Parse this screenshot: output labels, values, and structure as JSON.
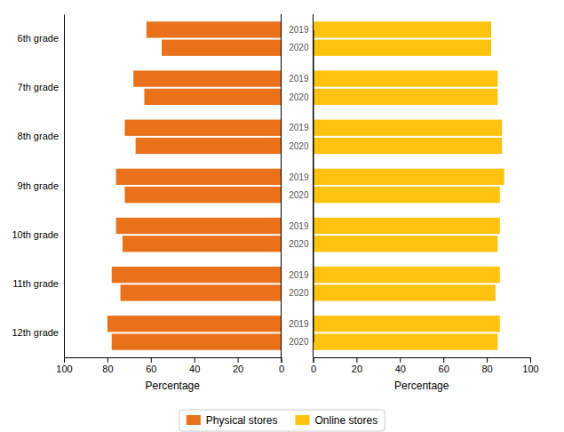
{
  "chart_data": [
    {
      "type": "bar",
      "orientation": "horizontal",
      "name": "Physical stores",
      "color": "#E8711A",
      "categories": [
        "6th grade",
        "7th grade",
        "8th grade",
        "9th grade",
        "10th grade",
        "11th grade",
        "12th grade"
      ],
      "series": [
        {
          "name": "2019",
          "values": [
            62,
            68,
            72,
            76,
            76,
            78,
            80
          ]
        },
        {
          "name": "2020",
          "values": [
            55,
            63,
            67,
            72,
            73,
            74,
            78
          ]
        }
      ],
      "xlabel": "Percentage",
      "xlim": [
        100,
        0
      ],
      "xticks": [
        100,
        80,
        60,
        40,
        20,
        0
      ],
      "legend": "bottom"
    },
    {
      "type": "bar",
      "orientation": "horizontal",
      "name": "Online stores",
      "color": "#FFC20E",
      "categories": [
        "6th grade",
        "7th grade",
        "8th grade",
        "9th grade",
        "10th grade",
        "11th grade",
        "12th grade"
      ],
      "series": [
        {
          "name": "2019",
          "values": [
            82,
            85,
            87,
            88,
            86,
            86,
            86
          ]
        },
        {
          "name": "2020",
          "values": [
            82,
            85,
            87,
            86,
            85,
            84,
            85
          ]
        }
      ],
      "xlabel": "Percentage",
      "xlim": [
        0,
        100
      ],
      "xticks": [
        0,
        20,
        40,
        60,
        80,
        100
      ],
      "legend": "bottom"
    }
  ]
}
